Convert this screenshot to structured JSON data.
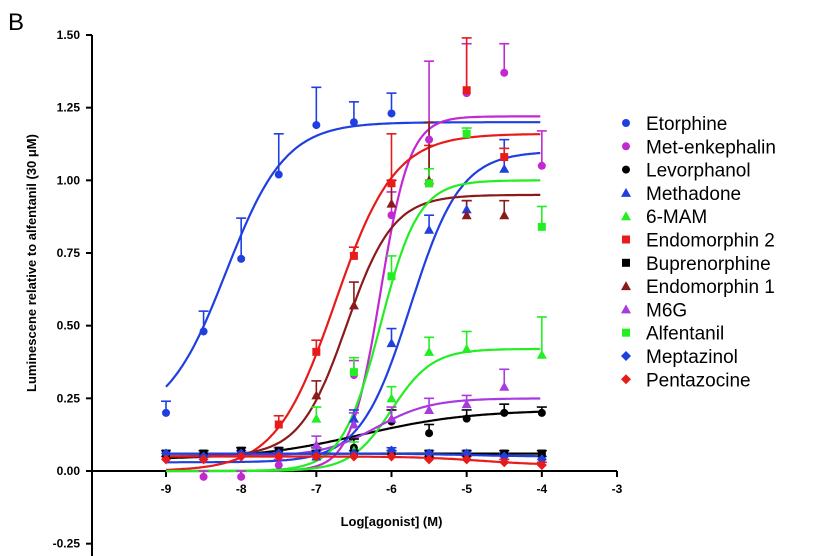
{
  "panel_label": "B",
  "chart_data": {
    "type": "scatter",
    "xlabel": "Log[agonist] (M)",
    "ylabel": "Luminescene relative to alfentanil (30 μM)",
    "xlim": [
      -9.5,
      -3
    ],
    "ylim": [
      -0.3,
      1.5
    ],
    "xticks": [
      -9,
      -8,
      -7,
      -6,
      -5,
      -4,
      -3
    ],
    "xtick_labels": [
      "-9",
      "-8",
      "-7",
      "-6",
      "-5",
      "-4",
      "-3"
    ],
    "yticks": [
      -0.25,
      0,
      0.25,
      0.5,
      0.75,
      1.0,
      1.25,
      1.5
    ],
    "ytick_labels": [
      "-0.25",
      "0.00",
      "0.25",
      "0.50",
      "0.75",
      "1.00",
      "1.25",
      "1.50"
    ],
    "legend_position": "right",
    "grid": false,
    "series": [
      {
        "name": "Etorphine",
        "color": "#1f3fe0",
        "marker": "circle",
        "x": [
          -9,
          -8.5,
          -8,
          -7.5,
          -7,
          -6.5,
          -6
        ],
        "y": [
          0.2,
          0.48,
          0.73,
          1.02,
          1.19,
          1.2,
          1.23
        ],
        "err": [
          0.04,
          0.07,
          0.14,
          0.14,
          0.13,
          0.07,
          0.07
        ],
        "fit": {
          "bottom": 0.17,
          "top": 1.2,
          "logec50": -8.2,
          "hill": 1.1
        }
      },
      {
        "name": "Met-enkephalin",
        "color": "#c02ad0",
        "marker": "circle",
        "x": [
          -8.5,
          -8,
          -7.5,
          -7,
          -6.5,
          -6,
          -5.5,
          -5,
          -4.5,
          -4
        ],
        "y": [
          -0.02,
          -0.02,
          0.02,
          0.05,
          0.33,
          0.88,
          1.14,
          1.3,
          1.37,
          1.05
        ],
        "err": [
          0.02,
          0.02,
          0.02,
          0.03,
          0.05,
          0.08,
          0.27,
          0.17,
          0.1,
          0.12
        ],
        "fit": {
          "bottom": 0.0,
          "top": 1.22,
          "logec50": -6.15,
          "hill": 2.2
        }
      },
      {
        "name": "Levorphanol",
        "color": "#000000",
        "marker": "circle",
        "x": [
          -7,
          -6.5,
          -6,
          -5.5,
          -5,
          -4.5,
          -4
        ],
        "y": [
          0.06,
          0.08,
          0.17,
          0.13,
          0.18,
          0.2,
          0.2
        ],
        "err": [
          0.02,
          0.03,
          0.04,
          0.03,
          0.03,
          0.03,
          0.02
        ],
        "fit": {
          "bottom": 0.04,
          "top": 0.21,
          "logec50": -6.4,
          "hill": 0.6
        }
      },
      {
        "name": "Methadone",
        "color": "#1f3fe0",
        "marker": "triangle",
        "x": [
          -7,
          -6.5,
          -6,
          -5.5,
          -5,
          -4.5
        ],
        "y": [
          0.05,
          0.18,
          0.44,
          0.83,
          0.9,
          1.04
        ],
        "err": [
          0.03,
          0.03,
          0.05,
          0.05,
          0.03,
          0.1
        ],
        "fit": {
          "bottom": 0.03,
          "top": 1.1,
          "logec50": -5.75,
          "hill": 1.3
        }
      },
      {
        "name": "6-MAM",
        "color": "#22ee22",
        "marker": "triangle",
        "x": [
          -7,
          -6.5,
          -6,
          -5.5,
          -5,
          -4
        ],
        "y": [
          0.18,
          0.07,
          0.25,
          0.41,
          0.42,
          0.4
        ],
        "err": [
          0.04,
          0.03,
          0.04,
          0.05,
          0.06,
          0.13
        ],
        "fit": {
          "bottom": 0.0,
          "top": 0.42,
          "logec50": -6.0,
          "hill": 1.6
        }
      },
      {
        "name": "Endomorphin 2",
        "color": "#e81a1a",
        "marker": "square",
        "x": [
          -7.5,
          -7,
          -6.5,
          -6,
          -5.5,
          -5,
          -4.5
        ],
        "y": [
          0.16,
          0.41,
          0.74,
          0.99,
          0.99,
          1.31,
          1.08
        ],
        "err": [
          0.03,
          0.04,
          0.03,
          0.17,
          0.13,
          0.18,
          0.03
        ],
        "fit": {
          "bottom": 0.0,
          "top": 1.16,
          "logec50": -6.75,
          "hill": 1.1
        }
      },
      {
        "name": "Buprenorphine",
        "color": "#000000",
        "marker": "square",
        "x": [
          -9,
          -8.5,
          -8,
          -7.5,
          -7,
          -6.5,
          -6,
          -5.5,
          -5,
          -4.5,
          -4
        ],
        "y": [
          0.06,
          0.06,
          0.07,
          0.07,
          0.06,
          0.06,
          0.06,
          0.06,
          0.06,
          0.06,
          0.06
        ],
        "err": [
          0.01,
          0.01,
          0.01,
          0.01,
          0.01,
          0.01,
          0.01,
          0.01,
          0.01,
          0.01,
          0.01
        ],
        "fit": {
          "bottom": 0.06,
          "top": 0.06,
          "logec50": -6.5,
          "hill": 1.0
        }
      },
      {
        "name": "Endomorphin 1",
        "color": "#8b1a1a",
        "marker": "triangle",
        "x": [
          -7,
          -6.5,
          -6,
          -5.5,
          -5,
          -4.5
        ],
        "y": [
          0.26,
          0.57,
          0.92,
          1.0,
          0.88,
          0.88
        ],
        "err": [
          0.05,
          0.08,
          0.08,
          0.2,
          0.05,
          0.05
        ],
        "fit": {
          "bottom": 0.05,
          "top": 0.95,
          "logec50": -6.6,
          "hill": 1.4
        }
      },
      {
        "name": "M6G",
        "color": "#a83ae0",
        "marker": "triangle",
        "x": [
          -7.5,
          -7,
          -6.5,
          -6,
          -5.5,
          -5,
          -4.5
        ],
        "y": [
          0.06,
          0.09,
          0.16,
          0.18,
          0.21,
          0.23,
          0.29
        ],
        "err": [
          0.02,
          0.03,
          0.04,
          0.04,
          0.04,
          0.03,
          0.06
        ],
        "fit": {
          "bottom": 0.05,
          "top": 0.25,
          "logec50": -6.2,
          "hill": 1.2
        }
      },
      {
        "name": "Alfentanil",
        "color": "#22ee22",
        "marker": "square",
        "x": [
          -6.5,
          -6,
          -5.5,
          -5,
          -4
        ],
        "y": [
          0.34,
          0.67,
          0.99,
          1.16,
          0.84
        ],
        "err": [
          0.05,
          0.07,
          0.05,
          0.02,
          0.07
        ],
        "fit": {
          "bottom": 0.0,
          "top": 1.0,
          "logec50": -6.15,
          "hill": 1.7
        }
      },
      {
        "name": "Meptazinol",
        "color": "#1f3fe0",
        "marker": "diamond",
        "x": [
          -9,
          -8.5,
          -8,
          -7.5,
          -7,
          -6.5,
          -6,
          -5.5,
          -5,
          -4.5,
          -4
        ],
        "y": [
          0.06,
          0.05,
          0.06,
          0.06,
          0.06,
          0.06,
          0.07,
          0.06,
          0.06,
          0.05,
          0.04
        ],
        "err": [
          0.01,
          0.01,
          0.01,
          0.01,
          0.01,
          0.01,
          0.01,
          0.01,
          0.01,
          0.01,
          0.01
        ],
        "fit": {
          "bottom": 0.06,
          "top": 0.05,
          "logec50": -5.0,
          "hill": 1.0
        }
      },
      {
        "name": "Pentazocine",
        "color": "#e81a1a",
        "marker": "diamond",
        "x": [
          -9,
          -8.5,
          -8,
          -7.5,
          -7,
          -6.5,
          -6,
          -5.5,
          -5,
          -4.5,
          -4
        ],
        "y": [
          0.04,
          0.04,
          0.05,
          0.05,
          0.05,
          0.05,
          0.05,
          0.04,
          0.04,
          0.03,
          0.02
        ],
        "err": [
          0.01,
          0.01,
          0.01,
          0.01,
          0.01,
          0.01,
          0.01,
          0.01,
          0.01,
          0.01,
          0.01
        ],
        "fit": {
          "bottom": 0.05,
          "top": 0.02,
          "logec50": -4.8,
          "hill": 1.0
        }
      }
    ]
  }
}
